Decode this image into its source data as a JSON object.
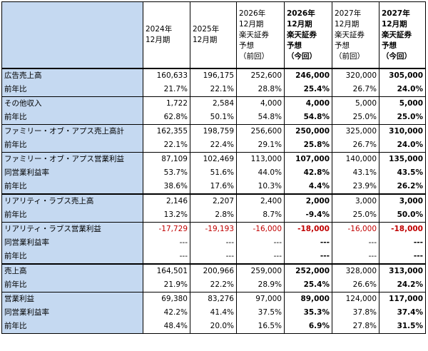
{
  "header": {
    "corner": "",
    "columns": [
      {
        "lines": [
          "2024年",
          "12月期"
        ],
        "bold": false
      },
      {
        "lines": [
          "2025年",
          "12月期"
        ],
        "bold": false
      },
      {
        "lines": [
          "2026年",
          "12月期",
          "楽天証券",
          "予想",
          "（前回）"
        ],
        "bold": false
      },
      {
        "lines": [
          "2026年",
          "12月期",
          "楽天証券",
          "予想",
          "（今回）"
        ],
        "bold": true
      },
      {
        "lines": [
          "2027年",
          "12月期",
          "楽天証券",
          "予想",
          "（前回）"
        ],
        "bold": false
      },
      {
        "lines": [
          "2027年",
          "12月期",
          "楽天証券",
          "予想",
          "（今回）"
        ],
        "bold": true
      }
    ]
  },
  "rows": [
    {
      "label": "広告売上高",
      "values": [
        "160,633",
        "196,175",
        "252,600",
        "246,000",
        "320,000",
        "305,000"
      ],
      "start": "group",
      "neg": false
    },
    {
      "label": "前年比",
      "values": [
        "21.7%",
        "22.1%",
        "28.8%",
        "25.4%",
        "26.7%",
        "24.0%"
      ],
      "start": "",
      "neg": false
    },
    {
      "label": "その他収入",
      "values": [
        "1,722",
        "2,584",
        "4,000",
        "4,000",
        "5,000",
        "5,000"
      ],
      "start": "group",
      "neg": false
    },
    {
      "label": "前年比",
      "values": [
        "62.8%",
        "50.1%",
        "54.8%",
        "54.8%",
        "25.0%",
        "25.0%"
      ],
      "start": "",
      "neg": false
    },
    {
      "label": "ファミリー・オブ・アプス売上高計",
      "values": [
        "162,355",
        "198,759",
        "256,600",
        "250,000",
        "325,000",
        "310,000"
      ],
      "start": "group",
      "neg": false
    },
    {
      "label": "前年比",
      "values": [
        "22.1%",
        "22.4%",
        "29.1%",
        "25.8%",
        "26.7%",
        "24.0%"
      ],
      "start": "",
      "neg": false
    },
    {
      "label": "ファミリー・オブ・アプス営業利益",
      "values": [
        "87,109",
        "102,469",
        "113,000",
        "107,000",
        "140,000",
        "135,000"
      ],
      "start": "group",
      "neg": false
    },
    {
      "label": "同営業利益率",
      "values": [
        "53.7%",
        "51.6%",
        "44.0%",
        "42.8%",
        "43.1%",
        "43.5%"
      ],
      "start": "",
      "neg": false
    },
    {
      "label": "前年比",
      "values": [
        "38.6%",
        "17.6%",
        "10.3%",
        "4.4%",
        "23.9%",
        "26.2%"
      ],
      "start": "",
      "neg": false
    },
    {
      "label": "リアリティ・ラブス売上高",
      "values": [
        "2,146",
        "2,207",
        "2,400",
        "2,000",
        "3,000",
        "3,000"
      ],
      "start": "block",
      "neg": false
    },
    {
      "label": "前年比",
      "values": [
        "13.2%",
        "2.8%",
        "8.7%",
        "-9.4%",
        "25.0%",
        "50.0%"
      ],
      "start": "",
      "neg": false
    },
    {
      "label": "リアリティ・ラブス営業利益",
      "values": [
        "-17,729",
        "-19,193",
        "-16,000",
        "-18,000",
        "-16,000",
        "-18,000"
      ],
      "start": "group",
      "neg": true
    },
    {
      "label": "同営業利益率",
      "values": [
        "---",
        "---",
        "---",
        "---",
        "---",
        "---"
      ],
      "start": "",
      "neg": false
    },
    {
      "label": "前年比",
      "values": [
        "---",
        "---",
        "---",
        "---",
        "---",
        "---"
      ],
      "start": "",
      "neg": false
    },
    {
      "label": "売上高",
      "values": [
        "164,501",
        "200,966",
        "259,000",
        "252,000",
        "328,000",
        "313,000"
      ],
      "start": "block",
      "neg": false
    },
    {
      "label": "前年比",
      "values": [
        "21.9%",
        "22.2%",
        "28.9%",
        "25.4%",
        "26.6%",
        "24.2%"
      ],
      "start": "",
      "neg": false
    },
    {
      "label": "営業利益",
      "values": [
        "69,380",
        "83,276",
        "97,000",
        "89,000",
        "124,000",
        "117,000"
      ],
      "start": "group",
      "neg": false
    },
    {
      "label": "同営業利益率",
      "values": [
        "42.2%",
        "41.4%",
        "37.5%",
        "35.3%",
        "37.8%",
        "37.4%"
      ],
      "start": "",
      "neg": false
    },
    {
      "label": "前年比",
      "values": [
        "48.4%",
        "20.0%",
        "16.5%",
        "6.9%",
        "27.8%",
        "31.5%"
      ],
      "start": "",
      "neg": false
    }
  ],
  "colors": {
    "label_bg": "#c5d9f1",
    "negative": "#c00000"
  }
}
